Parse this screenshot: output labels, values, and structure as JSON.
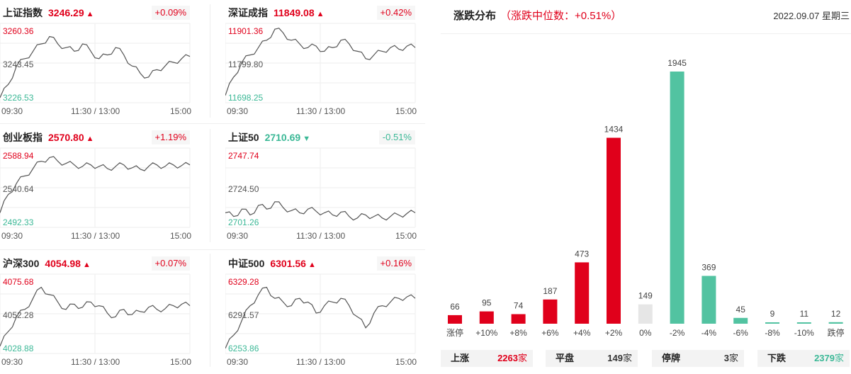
{
  "indices": [
    {
      "name": "上证指数",
      "value": "3246.29",
      "arrow": "▲",
      "change": "+0.09%",
      "dir": "up",
      "axis": {
        "high": "3260.36",
        "mid": "3243.45",
        "low": "3226.53"
      },
      "times": [
        "09:30",
        "11:30 / 13:00",
        "15:00"
      ]
    },
    {
      "name": "深证成指",
      "value": "11849.08",
      "arrow": "▲",
      "change": "+0.42%",
      "dir": "up",
      "axis": {
        "high": "11901.36",
        "mid": "11799.80",
        "low": "11698.25"
      },
      "times": [
        "09:30",
        "11:30 / 13:00",
        "15:00"
      ]
    },
    {
      "name": "创业板指",
      "value": "2570.80",
      "arrow": "▲",
      "change": "+1.19%",
      "dir": "up",
      "axis": {
        "high": "2588.94",
        "mid": "2540.64",
        "low": "2492.33"
      },
      "times": [
        "09:30",
        "11:30 / 13:00",
        "15:00"
      ]
    },
    {
      "name": "上证50",
      "value": "2710.69",
      "arrow": "▼",
      "change": "-0.51%",
      "dir": "down",
      "axis": {
        "high": "2747.74",
        "mid": "2724.50",
        "low": "2701.26"
      },
      "times": [
        "09:30",
        "11:30 / 13:00",
        "15:00"
      ]
    },
    {
      "name": "沪深300",
      "value": "4054.98",
      "arrow": "▲",
      "change": "+0.07%",
      "dir": "up",
      "axis": {
        "high": "4075.68",
        "mid": "4052.28",
        "low": "4028.88"
      },
      "times": [
        "09:30",
        "11:30 / 13:00",
        "15:00"
      ]
    },
    {
      "name": "中证500",
      "value": "6301.56",
      "arrow": "▲",
      "change": "+0.16%",
      "dir": "up",
      "axis": {
        "high": "6329.28",
        "mid": "6291.57",
        "low": "6253.86"
      },
      "times": [
        "09:30",
        "11:30 / 13:00",
        "15:00"
      ]
    }
  ],
  "distribution": {
    "title": "涨跌分布",
    "subtitle": "（涨跌中位数：+0.51%）",
    "date": "2022.09.07 星期三",
    "summary": [
      {
        "label": "上涨",
        "value": "2263",
        "unit": "家",
        "color": "#e0001b"
      },
      {
        "label": "平盘",
        "value": "149",
        "unit": "家",
        "color": "#333333"
      },
      {
        "label": "停牌",
        "value": "3",
        "unit": "家",
        "color": "#333333"
      },
      {
        "label": "下跌",
        "value": "2379",
        "unit": "家",
        "color": "#3bb896"
      }
    ]
  },
  "chart_data": {
    "type": "bar",
    "categories": [
      "涨停",
      "+10%",
      "+8%",
      "+6%",
      "+4%",
      "+2%",
      "0%",
      "-2%",
      "-4%",
      "-6%",
      "-8%",
      "-10%",
      "跌停"
    ],
    "values": [
      66,
      95,
      74,
      187,
      473,
      1434,
      149,
      1945,
      369,
      45,
      9,
      11,
      12
    ],
    "colors": [
      "#e0001b",
      "#e0001b",
      "#e0001b",
      "#e0001b",
      "#e0001b",
      "#e0001b",
      "#e6e6e6",
      "#52c3a1",
      "#52c3a1",
      "#52c3a1",
      "#52c3a1",
      "#52c3a1",
      "#52c3a1"
    ],
    "ylim": [
      0,
      1945
    ],
    "grid": false
  },
  "colors": {
    "up": "#e0001b",
    "down": "#3bb896",
    "flat": "#e6e6e6"
  }
}
